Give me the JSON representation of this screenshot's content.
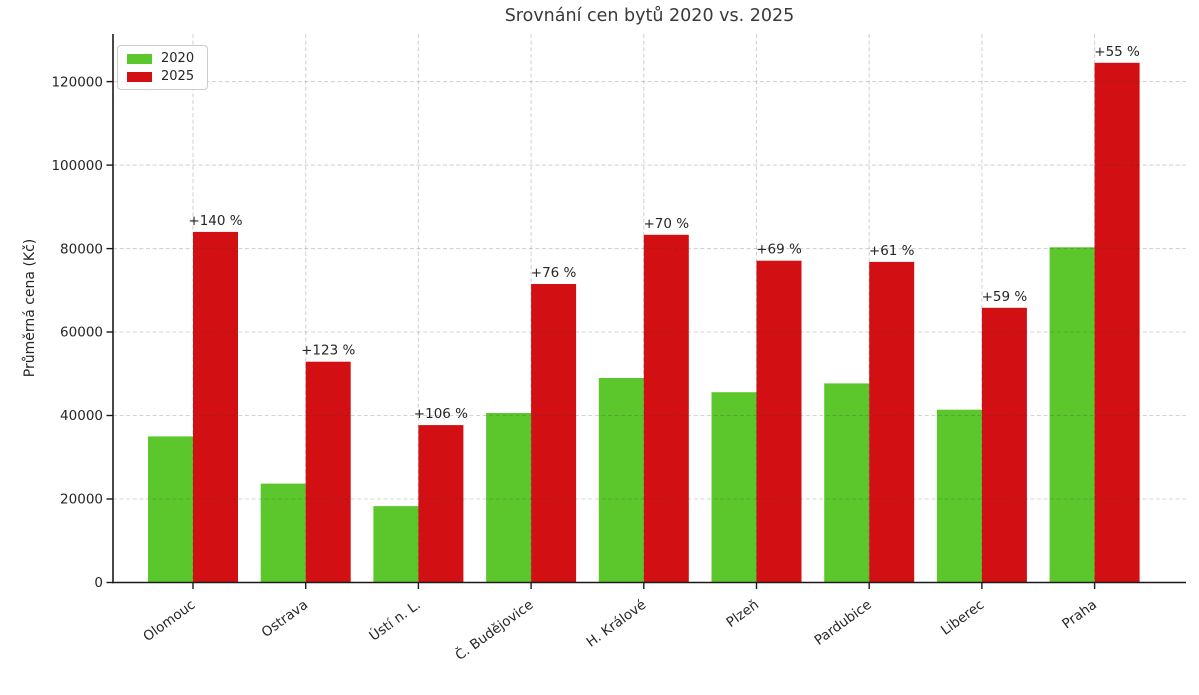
{
  "figure": {
    "title": "Srovnání cen bytů 2020 vs. 2025"
  },
  "chart_data": {
    "type": "bar",
    "title": "Srovnání cen bytů 2020 vs. 2025",
    "xlabel": "",
    "ylabel": "Průměrná cena (Kč)",
    "categories": [
      "Olomouc",
      "Ostrava",
      "Ústí n. L.",
      "Č. Budějovice",
      "H. Králové",
      "Plzeň",
      "Pardubice",
      "Liberec",
      "Praha"
    ],
    "series": [
      {
        "name": "2020",
        "color": "#5cc72d",
        "values": [
          35000,
          23700,
          18300,
          40600,
          49000,
          45600,
          47700,
          41400,
          80300
        ]
      },
      {
        "name": "2025",
        "color": "#d20f12",
        "values": [
          84000,
          52900,
          37700,
          71500,
          83300,
          77100,
          76800,
          65800,
          124500
        ]
      }
    ],
    "bar_annotations": {
      "series": "2025",
      "labels": [
        "+140 %",
        "+123 %",
        "+106 %",
        "+76 %",
        "+70 %",
        "+69 %",
        "+61 %",
        "+59 %",
        "+55 %"
      ]
    },
    "yticks": [
      0,
      20000,
      40000,
      60000,
      80000,
      100000,
      120000
    ],
    "ytick_labels": [
      "0",
      "20000",
      "40000",
      "60000",
      "80000",
      "100000",
      "120000"
    ],
    "ylim": [
      0,
      131400
    ],
    "grid": {
      "show": true,
      "axis": "both",
      "style": "dashed"
    },
    "legend_position": "upper-left",
    "colors": {
      "axis": "#1a1a1a",
      "grid_over_white": "#d9d9d9",
      "tick_text": "#262626",
      "title_text": "#3a3a3a",
      "annotation_text": "#000000"
    }
  }
}
